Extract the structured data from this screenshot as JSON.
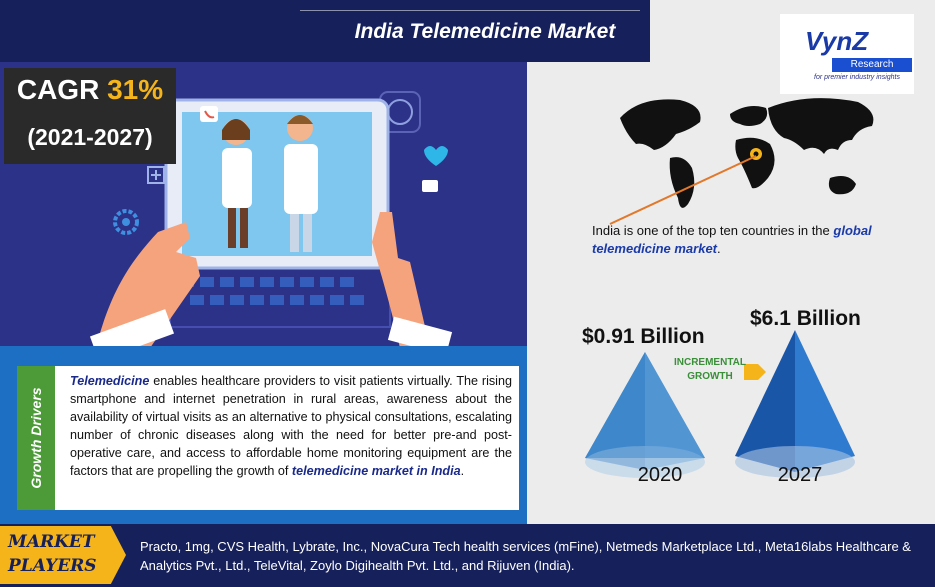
{
  "header": {
    "title": "India Telemedicine Market"
  },
  "cagr": {
    "label": "CAGR ",
    "value": "31%",
    "period": "(2021-2027)"
  },
  "logo": {
    "name": "VynZ",
    "sub": "Research",
    "tagline": "for premier industry insights"
  },
  "map": {
    "caption_plain": "India is one of the top ten countries in the ",
    "caption_bold": "global telemedicine market",
    "caption_end": "."
  },
  "market_values": {
    "value_2020": "$0.91 Billion",
    "value_2027": "$6.1 Billion",
    "incremental_label_line1": "INCREMENTAL",
    "incremental_label_line2": "GROWTH",
    "year_2020": "2020",
    "year_2027": "2027"
  },
  "growth_drivers": {
    "label": "Growth Drivers",
    "lead": "Telemedicine",
    "body": " enables healthcare providers to visit patients virtually. The rising smartphone and internet penetration in rural areas, awareness about the availability of virtual visits as an alternative to physical consultations, escalating number of chronic diseases along with the need for better pre-and post-operative care, and access to affordable home monitoring equipment are the factors that are propelling the growth of ",
    "tail_bold": "telemedicine market in India",
    "tail_end": "."
  },
  "market_players": {
    "label_line1": "MARKET",
    "label_line2": "PLAYERS",
    "list": "Practo, 1mg, CVS Health, Lybrate, Inc., NovaCura Tech health services (mFine), Netmeds Marketplace Ltd., Meta16labs Healthcare & Analytics Pvt., Ltd., TeleVital, Zoylo Digihealth Pvt. Ltd., and Rijuven (India)."
  },
  "colors": {
    "navy": "#16205a",
    "hero_bg": "#2c3287",
    "drivers_blue": "#1c6fc2",
    "growth_green": "#4c9b38",
    "gold": "#f4b41a",
    "cone_2020": "#3f86c8",
    "cone_2027": "#1f5fb8"
  },
  "icons": [
    "phone-icon",
    "heart-icon",
    "plus-icon",
    "gear-icon",
    "chat-icon",
    "location-pin-icon",
    "world-map-icon"
  ]
}
